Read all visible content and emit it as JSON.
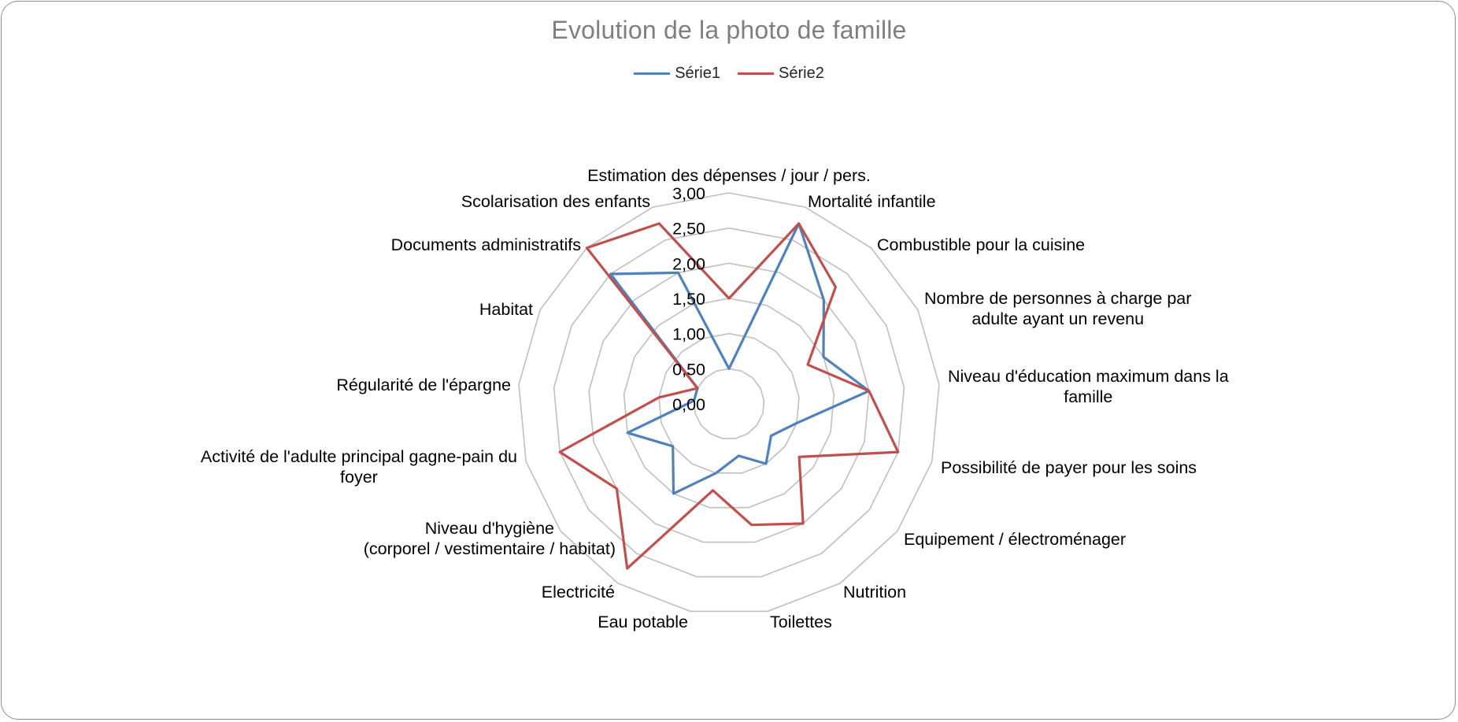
{
  "chart_data": {
    "type": "radar",
    "title": "Evolution de la photo de famille",
    "legend_position": "top",
    "range": [
      0,
      3
    ],
    "ticks": [
      "0,00",
      "0,50",
      "1,00",
      "1,50",
      "2,00",
      "2,50",
      "3,00"
    ],
    "categories": [
      "Estimation des dépenses / jour / pers.",
      "Mortalité infantile",
      "Combustible pour la cuisine",
      "Nombre de personnes à charge par adulte ayant un revenu",
      "Niveau d'éducation maximum dans la famille",
      "Possibilité de payer pour les soins",
      "Equipement / électroménager",
      "Nutrition",
      "Toilettes",
      "Eau potable",
      "Electricité",
      "Niveau d'hygiène (corporel / vestimentaire / habitat)",
      "Activité de l'adulte principal gagne-pain du foyer",
      "Régularité de l'épargne",
      "Habitat",
      "Documents administratifs",
      "Scolarisation des enfants"
    ],
    "series": [
      {
        "name": "Série1",
        "color": "#4f81bd",
        "values": [
          0.5,
          2.75,
          2.0,
          1.5,
          2.0,
          1.0,
          0.75,
          1.0,
          0.75,
          1.0,
          1.5,
          1.0,
          1.5,
          0.5,
          0.5,
          2.5,
          2.0
        ]
      },
      {
        "name": "Série2",
        "color": "#c0504d",
        "values": [
          1.5,
          2.75,
          2.25,
          1.25,
          2.0,
          2.5,
          1.25,
          2.0,
          1.75,
          1.25,
          2.75,
          2.0,
          2.5,
          1.0,
          0.5,
          3.0,
          2.75
        ]
      }
    ]
  }
}
